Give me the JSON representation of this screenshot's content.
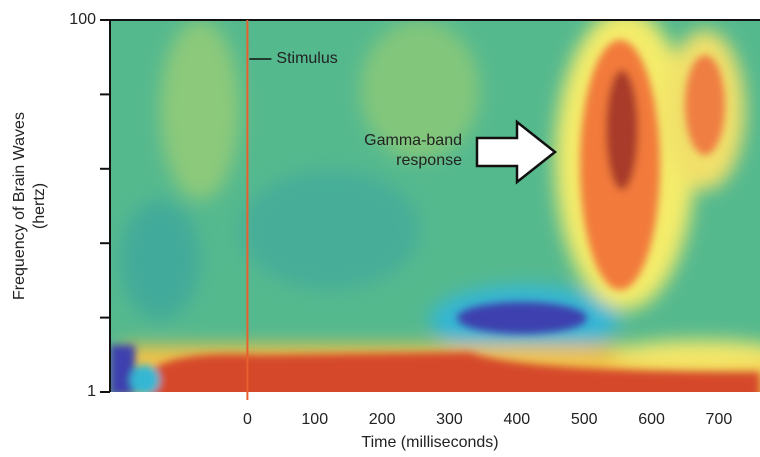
{
  "chart_data": {
    "type": "heatmap",
    "xlabel": "Time (milliseconds)",
    "ylabel": [
      "Frequency of Brain Waves",
      "(hertz)"
    ],
    "xlim": [
      -204,
      761
    ],
    "xticks": [
      0,
      100,
      200,
      300,
      400,
      500,
      600,
      700
    ],
    "ylim": [
      1,
      100
    ],
    "yticks": [
      1,
      100
    ],
    "yminorticks": [
      2.512,
      6.31,
      15.85,
      39.81
    ],
    "yscale": "log",
    "annotations": [
      {
        "text": "Stimulus",
        "x": 0,
        "color": "#e8602c"
      },
      {
        "lines": [
          "Gamma-band",
          "response"
        ]
      }
    ]
  }
}
